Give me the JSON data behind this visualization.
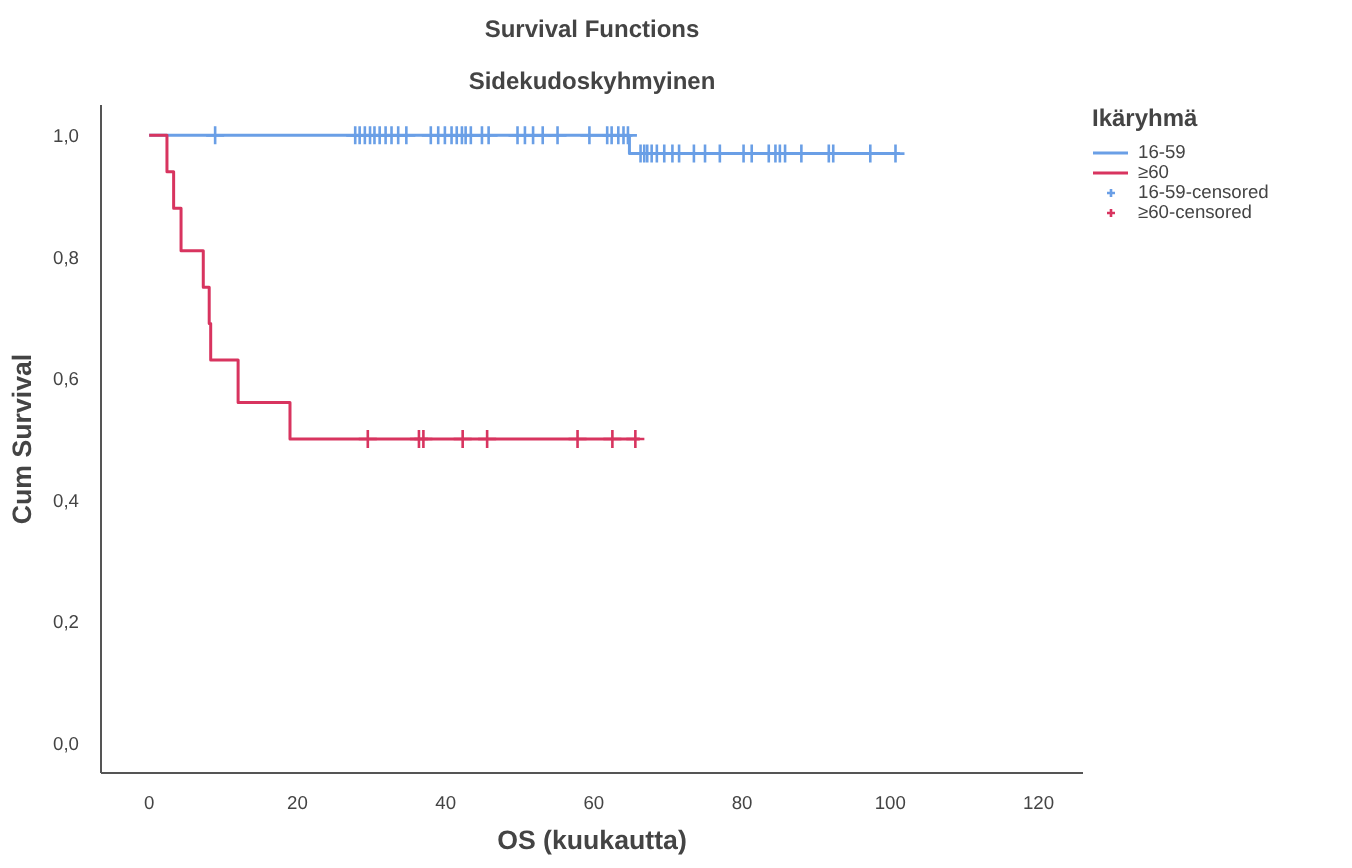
{
  "chart_data": {
    "type": "step",
    "title": "Survival Functions",
    "subtitle": "Sidekudoskyhmyinen",
    "xlabel": "OS (kuukautta)",
    "ylabel": "Cum Survival",
    "legend_title": "Ikäryhmä",
    "legend": "right",
    "grid": false,
    "xlim": [
      -6.5,
      126
    ],
    "ylim": [
      -0.05,
      1.05
    ],
    "xticks": [
      0,
      20,
      40,
      60,
      80,
      100,
      120
    ],
    "yticks": [
      {
        "value": 0,
        "label": "0,0"
      },
      {
        "value": 0.2,
        "label": "0,2"
      },
      {
        "value": 0.4,
        "label": "0,4"
      },
      {
        "value": 0.6,
        "label": "0,6"
      },
      {
        "value": 0.8,
        "label": "0,8"
      },
      {
        "value": 1.0,
        "label": "1,0"
      }
    ],
    "series": [
      {
        "name": "16-59",
        "color": "#6a9fe6",
        "x": [
          0,
          64.8,
          101.3
        ],
        "values": [
          1.0,
          0.97,
          0.97
        ]
      },
      {
        "name": "≥60",
        "color": "#d8345f",
        "x": [
          0,
          2.4,
          3.3,
          4.3,
          7.3,
          8.1,
          8.3,
          12.0,
          19.0,
          66.2
        ],
        "values": [
          1.0,
          0.94,
          0.88,
          0.81,
          0.75,
          0.69,
          0.63,
          0.56,
          0.5,
          0.5
        ]
      },
      {
        "name": "16-59-censored",
        "type": "scatter",
        "marker": "cross",
        "color": "#6a9fe6",
        "x": [
          8.9,
          27.8,
          28.4,
          29.1,
          29.8,
          30.4,
          31.1,
          31.9,
          32.7,
          33.6,
          34.7,
          38.0,
          39.0,
          39.9,
          40.8,
          41.5,
          42.2,
          42.7,
          43.4,
          44.9,
          45.8,
          49.7,
          50.7,
          51.8,
          53.1,
          55.1,
          59.4,
          61.8,
          62.4,
          63.3,
          64.0,
          64.6,
          66.3,
          66.8,
          67.2,
          67.8,
          68.5,
          69.5,
          70.6,
          71.5,
          73.5,
          75.0,
          77.0,
          80.2,
          81.3,
          83.6,
          84.5,
          85.1,
          85.8,
          88.0,
          91.7,
          92.3,
          97.3,
          100.7
        ],
        "values": [
          1.0,
          1.0,
          1.0,
          1.0,
          1.0,
          1.0,
          1.0,
          1.0,
          1.0,
          1.0,
          1.0,
          1.0,
          1.0,
          1.0,
          1.0,
          1.0,
          1.0,
          1.0,
          1.0,
          1.0,
          1.0,
          1.0,
          1.0,
          1.0,
          1.0,
          1.0,
          1.0,
          1.0,
          1.0,
          1.0,
          1.0,
          1.0,
          0.97,
          0.97,
          0.97,
          0.97,
          0.97,
          0.97,
          0.97,
          0.97,
          0.97,
          0.97,
          0.97,
          0.97,
          0.97,
          0.97,
          0.97,
          0.97,
          0.97,
          0.97,
          0.97,
          0.97,
          0.97,
          0.97
        ]
      },
      {
        "name": "≥60-censored",
        "type": "scatter",
        "marker": "cross",
        "color": "#d8345f",
        "x": [
          29.5,
          36.4,
          37.0,
          42.3,
          45.6,
          57.8,
          62.5,
          65.6
        ],
        "values": [
          0.5,
          0.5,
          0.5,
          0.5,
          0.5,
          0.5,
          0.5,
          0.5
        ]
      }
    ]
  }
}
